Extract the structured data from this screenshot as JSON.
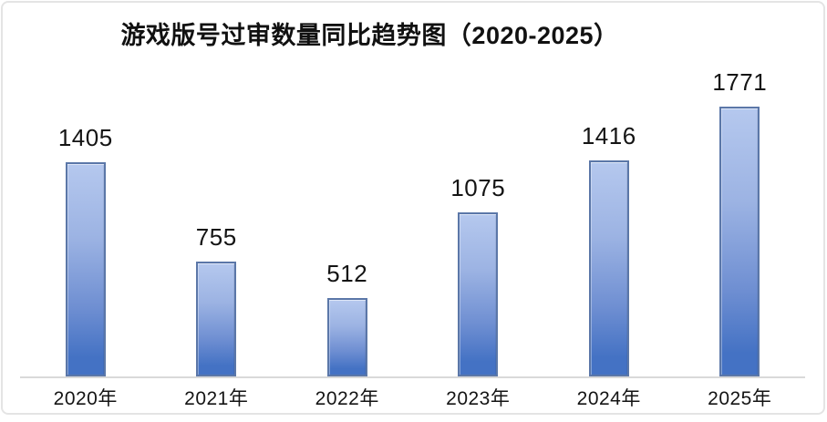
{
  "chart_data": {
    "type": "bar",
    "title": "游戏版号过审数量同比趋势图（2020-2025）",
    "categories": [
      "2020年",
      "2021年",
      "2022年",
      "2023年",
      "2024年",
      "2025年"
    ],
    "values": [
      1405,
      755,
      512,
      1075,
      1416,
      1771
    ],
    "xlabel": "",
    "ylabel": "",
    "ylim": [
      0,
      1800
    ],
    "grid": false,
    "legend": "none",
    "y_axis_visible": false,
    "data_labels_visible": true,
    "colors": {
      "bar_gradient_top": "#b5c8ee",
      "bar_gradient_bottom": "#4472c4",
      "bar_border": "#5b77a8",
      "axis_line": "#d9d9d9",
      "text": "#141414",
      "card_border": "#e4e4e4",
      "background": "#ffffff"
    }
  }
}
